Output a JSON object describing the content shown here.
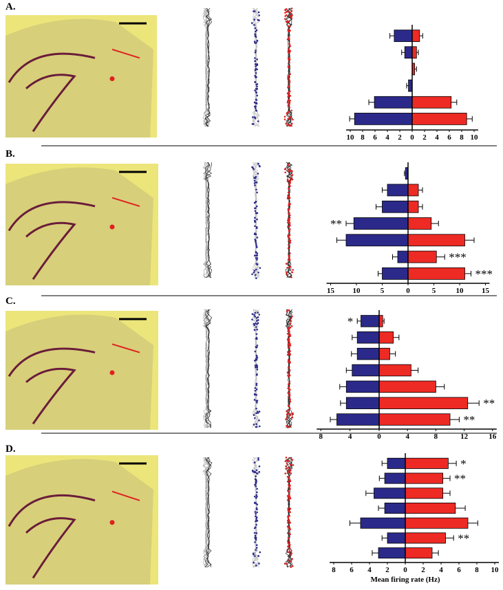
{
  "chart_data": [
    {
      "type": "bar",
      "title": "A.",
      "xlim_left": 10,
      "xlim_right": 10,
      "xticks_left": [
        10,
        8,
        6,
        4,
        2
      ],
      "xticks_right": [
        0,
        2,
        4,
        6,
        8,
        10
      ],
      "series": [
        {
          "color": "#2b2a8a",
          "side": "left",
          "values": [
            2.9,
            1.2,
            0,
            0.6,
            6.1,
            9.3
          ],
          "errors": [
            0.7,
            0.5,
            0,
            0.3,
            0.9,
            0.8
          ],
          "significance": [
            null,
            null,
            null,
            null,
            null,
            null
          ]
        },
        {
          "color": "#ee2a24",
          "side": "right",
          "values": [
            1.2,
            0.7,
            0.4,
            0,
            6.3,
            8.8
          ],
          "errors": [
            0.5,
            0.3,
            0.3,
            0,
            0.9,
            0.9
          ],
          "significance": [
            null,
            null,
            null,
            null,
            null,
            null
          ]
        }
      ]
    },
    {
      "type": "bar",
      "title": "B.",
      "xlim_left": 15,
      "xlim_right": 15,
      "xticks_left": [
        15,
        10,
        5
      ],
      "xticks_right": [
        0,
        5,
        10,
        15
      ],
      "series": [
        {
          "color": "#2b2a8a",
          "side": "left",
          "values": [
            0.5,
            4,
            5,
            10.5,
            12,
            2,
            5
          ],
          "errors": [
            0.2,
            1,
            1.2,
            1.5,
            1.8,
            1,
            0.8
          ],
          "significance": [
            null,
            null,
            null,
            "**",
            null,
            null,
            null
          ]
        },
        {
          "color": "#ee2a24",
          "side": "right",
          "values": [
            0,
            2,
            2,
            4.5,
            11,
            5.5,
            11
          ],
          "errors": [
            0,
            0.8,
            0.8,
            1.4,
            1.8,
            1.6,
            1.2
          ],
          "significance": [
            null,
            null,
            null,
            null,
            null,
            "***",
            "***"
          ]
        }
      ]
    },
    {
      "type": "bar",
      "title": "C.",
      "xlim_left": 8,
      "xlim_right": 16,
      "xticks_left": [
        8,
        4
      ],
      "xticks_right": [
        0,
        4,
        8,
        12,
        16
      ],
      "series": [
        {
          "color": "#2b2a8a",
          "side": "left",
          "values": [
            2.5,
            3,
            3,
            3.7,
            4.5,
            4.5,
            5.8
          ],
          "errors": [
            0.5,
            0.7,
            0.8,
            0.8,
            0.9,
            0.8,
            0.9
          ],
          "significance": [
            "*",
            null,
            null,
            null,
            null,
            null,
            null
          ]
        },
        {
          "color": "#ee2a24",
          "side": "right",
          "values": [
            0.5,
            2,
            1.5,
            4.5,
            8,
            12.5,
            10
          ],
          "errors": [
            0.2,
            0.8,
            0.8,
            1,
            1.2,
            1.6,
            1.3
          ],
          "significance": [
            null,
            null,
            null,
            null,
            null,
            "**",
            "**"
          ]
        }
      ]
    },
    {
      "type": "bar",
      "title": "D.",
      "xlabel": "Mean firing rate (Hz)",
      "xlim_left": 8,
      "xlim_right": 10,
      "xticks_left": [
        8,
        6,
        4,
        2
      ],
      "xticks_right": [
        0,
        2,
        4,
        6,
        8,
        10
      ],
      "series": [
        {
          "color": "#2b2a8a",
          "side": "left",
          "values": [
            2,
            2.3,
            3.5,
            2.3,
            5,
            2,
            3
          ],
          "errors": [
            0.6,
            0.6,
            0.9,
            0.7,
            1.2,
            0.6,
            0.7
          ],
          "significance": [
            null,
            null,
            null,
            null,
            null,
            null,
            null
          ]
        },
        {
          "color": "#ee2a24",
          "side": "right",
          "values": [
            4.8,
            4.2,
            4.2,
            5.6,
            7,
            4.5,
            3
          ],
          "errors": [
            0.9,
            0.8,
            0.8,
            1.1,
            1.1,
            0.9,
            0.7
          ],
          "significance": [
            "*",
            "**",
            null,
            null,
            null,
            "**",
            null
          ]
        }
      ]
    }
  ]
}
